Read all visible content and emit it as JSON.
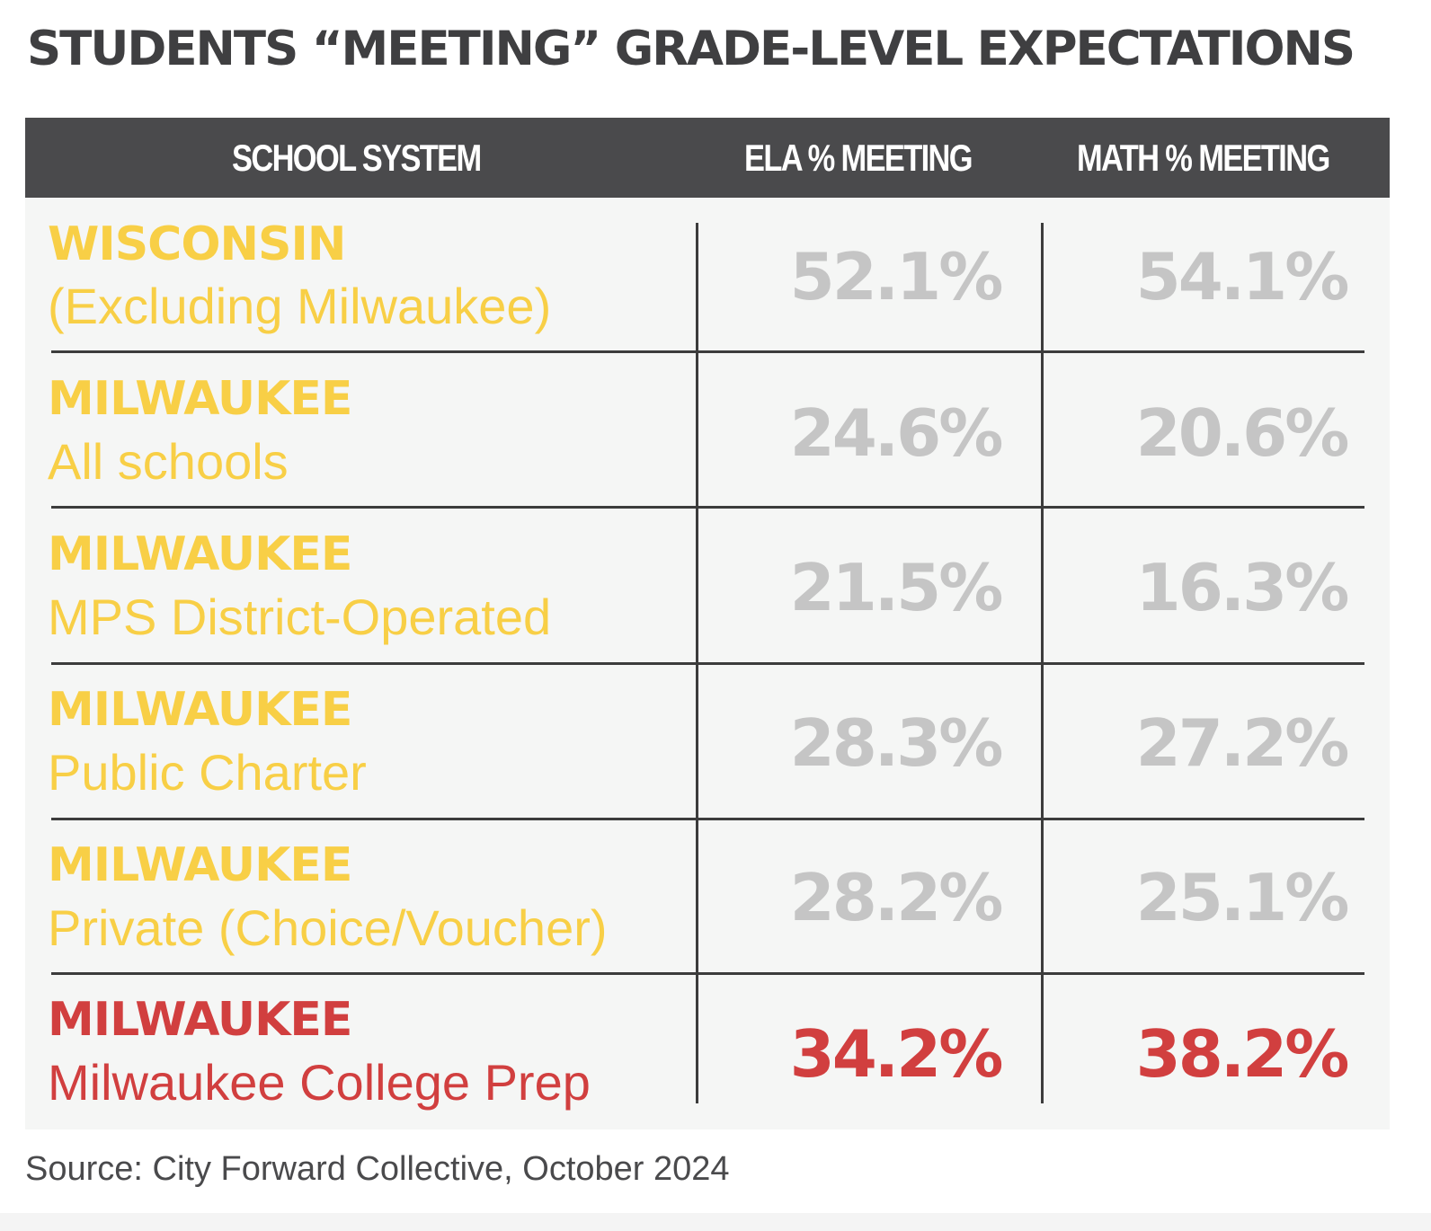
{
  "title": "STUDENTS “MEETING” GRADE-LEVEL EXPECTATIONS",
  "colors": {
    "header_bg": "#4a4a4c",
    "header_text": "#ffffff",
    "body_bg": "#f5f6f5",
    "yellow": "#f8cf46",
    "gray_value": "#c5c5c5",
    "red": "#d13f3f",
    "rule": "#3c3c3c"
  },
  "chart_data": {
    "type": "table",
    "title": "STUDENTS “MEETING” GRADE-LEVEL EXPECTATIONS",
    "columns": [
      "SCHOOL SYSTEM",
      "ELA % MEETING",
      "MATH % MEETING"
    ],
    "rows": [
      {
        "system": "WISCONSIN",
        "subtitle": "(Excluding Milwaukee)",
        "ela": "52.1%",
        "math": "54.1%",
        "highlight": false
      },
      {
        "system": "MILWAUKEE",
        "subtitle": "All schools",
        "ela": "24.6%",
        "math": "20.6%",
        "highlight": false
      },
      {
        "system": "MILWAUKEE",
        "subtitle": "MPS District-Operated",
        "ela": "21.5%",
        "math": "16.3%",
        "highlight": false
      },
      {
        "system": "MILWAUKEE",
        "subtitle": "Public Charter",
        "ela": "28.3%",
        "math": "27.2%",
        "highlight": false
      },
      {
        "system": "MILWAUKEE",
        "subtitle": "Private (Choice/Voucher)",
        "ela": "28.2%",
        "math": "25.1%",
        "highlight": false
      },
      {
        "system": "MILWAUKEE",
        "subtitle": "Milwaukee College Prep",
        "ela": "34.2%",
        "math": "38.2%",
        "highlight": true
      }
    ]
  },
  "source": "Source: City Forward Collective, October 2024"
}
